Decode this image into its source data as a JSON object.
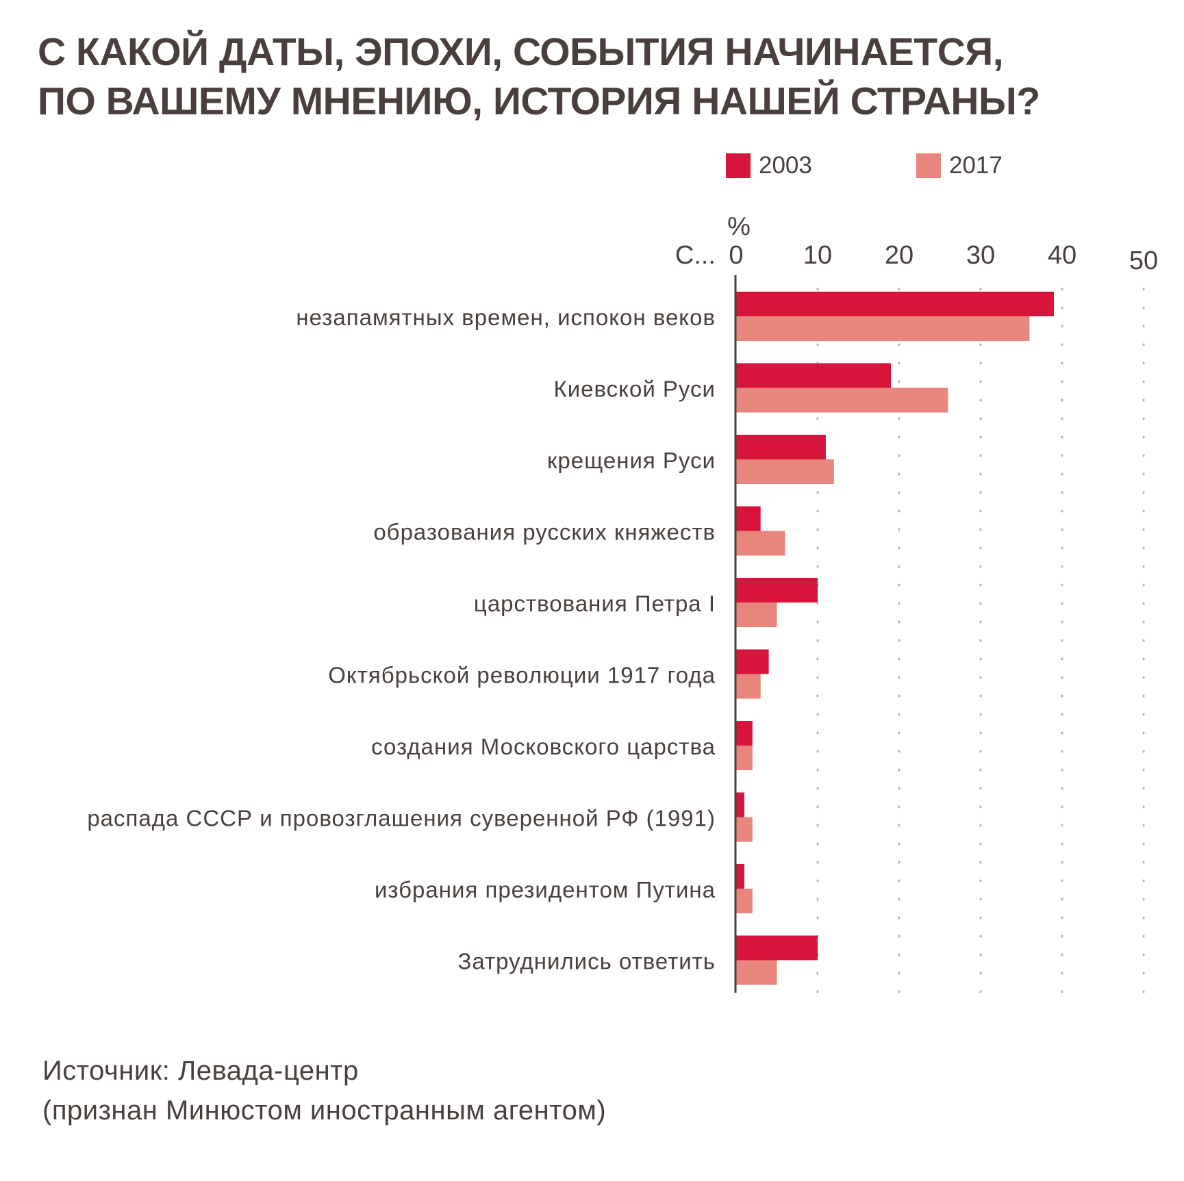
{
  "chart_data": {
    "type": "bar",
    "orientation": "horizontal",
    "title": [
      "С КАКОЙ ДАТЫ, ЭПОХИ, СОБЫТИЯ НАЧИНАЕТСЯ,",
      "ПО ВАШЕМУ МНЕНИЮ, ИСТОРИЯ НАШЕЙ СТРАНЫ?"
    ],
    "category_axis_label": "С...",
    "value_axis_unit": "%",
    "xlim": [
      0,
      50
    ],
    "ticks": [
      0,
      10,
      20,
      30,
      40,
      50
    ],
    "tick_labels": [
      "0",
      "10",
      "20",
      "30",
      "40",
      "50"
    ],
    "grid": "dotted",
    "legend_position": "top-right",
    "categories": [
      "незапамятных времен, испокон веков",
      "Киевской Руси",
      "крещения Руси",
      "образования русских княжеств",
      "царствования Петра I",
      "Октябрьской революции 1917 года",
      "создания Московского царства",
      "распада СССР и провозглашения суверенной РФ (1991)",
      "избрания президентом Путина",
      "Затруднились ответить"
    ],
    "series": [
      {
        "name": "2003",
        "color": "#d7143a",
        "values": [
          39,
          19,
          11,
          3,
          10,
          4,
          2,
          1,
          1,
          10
        ]
      },
      {
        "name": "2017",
        "color": "#e8857d",
        "values": [
          36,
          26,
          12,
          6,
          5,
          3,
          2,
          2,
          2,
          5
        ]
      }
    ]
  },
  "source": {
    "line1": "Источник: Левада-центр",
    "line2": "(признан Минюстом иностранным агентом)"
  },
  "colors": {
    "text": "#4a3f3c",
    "axis": "#4a3f3c",
    "grid": "#b9b4b2",
    "background": "#ffffff"
  }
}
